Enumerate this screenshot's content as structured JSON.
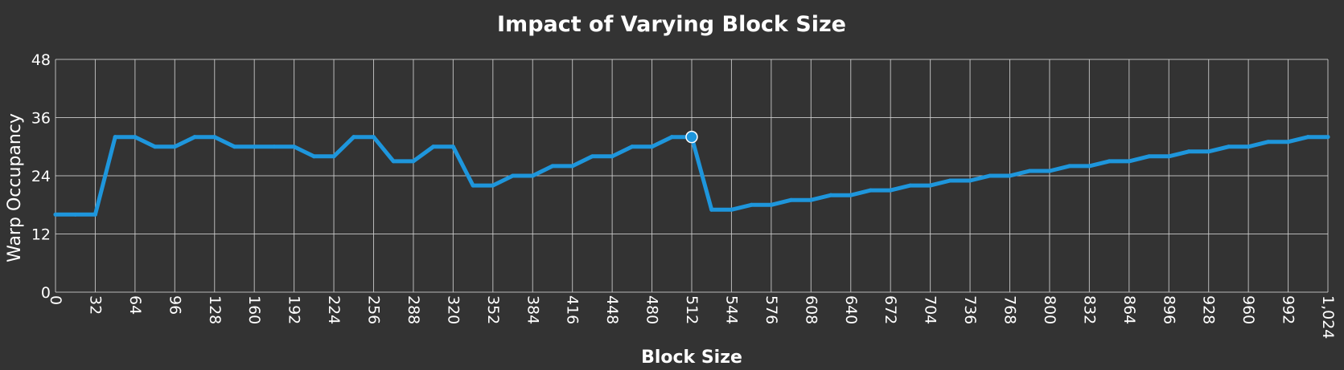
{
  "chart_data": {
    "type": "line",
    "title": "Impact of Varying Block Size",
    "xlabel": "Block Size",
    "ylabel": "Warp Occupancy",
    "xlim": [
      0,
      1024
    ],
    "ylim": [
      0,
      48
    ],
    "x_ticks": [
      "0",
      "32",
      "64",
      "96",
      "128",
      "160",
      "192",
      "224",
      "256",
      "288",
      "320",
      "352",
      "384",
      "416",
      "448",
      "480",
      "512",
      "544",
      "576",
      "608",
      "640",
      "672",
      "704",
      "736",
      "768",
      "800",
      "832",
      "864",
      "896",
      "928",
      "960",
      "992",
      "1,024"
    ],
    "x_tick_values": [
      0,
      32,
      64,
      96,
      128,
      160,
      192,
      224,
      256,
      288,
      320,
      352,
      384,
      416,
      448,
      480,
      512,
      544,
      576,
      608,
      640,
      672,
      704,
      736,
      768,
      800,
      832,
      864,
      896,
      928,
      960,
      992,
      1024
    ],
    "y_ticks": [
      "0",
      "12",
      "24",
      "36",
      "48"
    ],
    "y_tick_values": [
      0,
      12,
      24,
      36,
      48
    ],
    "grid": true,
    "series_color": "#1e96dc",
    "highlight_point": {
      "x": 512,
      "y": 32
    },
    "x": [
      0,
      16,
      32,
      48,
      64,
      80,
      96,
      112,
      128,
      144,
      160,
      176,
      192,
      208,
      224,
      240,
      256,
      272,
      288,
      304,
      320,
      336,
      352,
      368,
      384,
      400,
      416,
      432,
      448,
      464,
      480,
      496,
      512,
      528,
      544,
      560,
      576,
      592,
      608,
      624,
      640,
      656,
      672,
      688,
      704,
      720,
      736,
      752,
      768,
      784,
      800,
      816,
      832,
      848,
      864,
      880,
      896,
      912,
      928,
      944,
      960,
      976,
      992,
      1008,
      1024
    ],
    "series": [
      {
        "values": [
          16,
          16,
          16,
          32,
          32,
          30,
          30,
          32,
          32,
          30,
          30,
          30,
          30,
          28,
          28,
          32,
          32,
          27,
          27,
          30,
          30,
          22,
          22,
          24,
          24,
          26,
          26,
          28,
          28,
          30,
          30,
          32,
          32,
          17,
          17,
          18,
          18,
          19,
          19,
          20,
          20,
          21,
          21,
          22,
          22,
          23,
          23,
          24,
          24,
          25,
          25,
          26,
          26,
          27,
          27,
          28,
          28,
          29,
          29,
          30,
          30,
          31,
          31,
          32,
          32
        ]
      }
    ]
  }
}
